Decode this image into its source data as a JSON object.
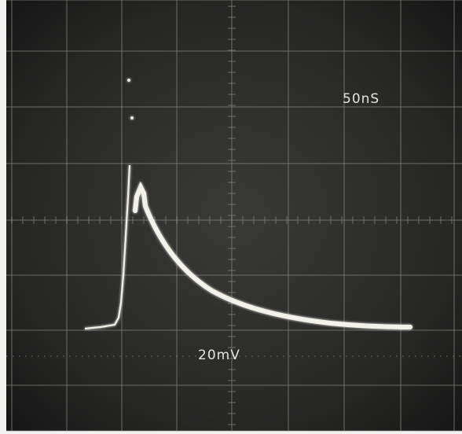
{
  "timebase_label": "50nS",
  "voltage_label": "20mV"
}
